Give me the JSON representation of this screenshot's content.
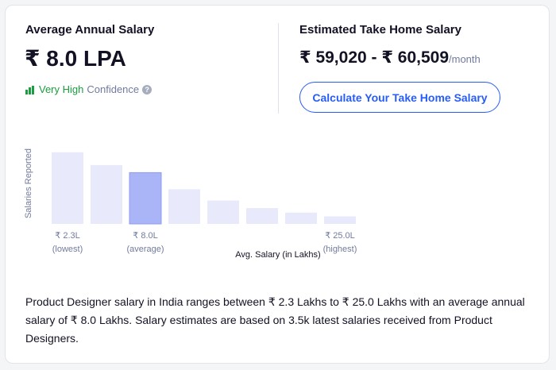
{
  "salary": {
    "title": "Average Annual Salary",
    "value": "₹ 8.0 LPA",
    "confidence_level": "Very High",
    "confidence_label": "Confidence",
    "help_icon": "?"
  },
  "take_home": {
    "title": "Estimated Take Home Salary",
    "range": "₹ 59,020 - ₹ 60,509",
    "unit": "/month",
    "button": "Calculate Your Take Home Salary"
  },
  "chart_data": {
    "type": "bar",
    "y_label": "Salaries Reported",
    "x_label": "Avg. Salary (in Lakhs)",
    "categories": [
      "₹ 2.3L",
      null,
      "₹ 8.0L",
      null,
      null,
      null,
      null,
      "₹ 25.0L"
    ],
    "category_notes": [
      "(lowest)",
      null,
      "(average)",
      null,
      null,
      null,
      null,
      "(highest)"
    ],
    "values": [
      95,
      78,
      68,
      46,
      31,
      21,
      15,
      10
    ],
    "colors": [
      "#e8eafc",
      "#e8eafc",
      "#aab5f8",
      "#e8eafc",
      "#e8eafc",
      "#e8eafc",
      "#e8eafc",
      "#e8eafc"
    ],
    "ylim": [
      0,
      100
    ]
  },
  "description": "Product Designer salary in India ranges between ₹ 2.3 Lakhs to ₹ 25.0 Lakhs with an average annual salary of ₹ 8.0 Lakhs. Salary estimates are based on 3.5k latest salaries received from Product Designers."
}
